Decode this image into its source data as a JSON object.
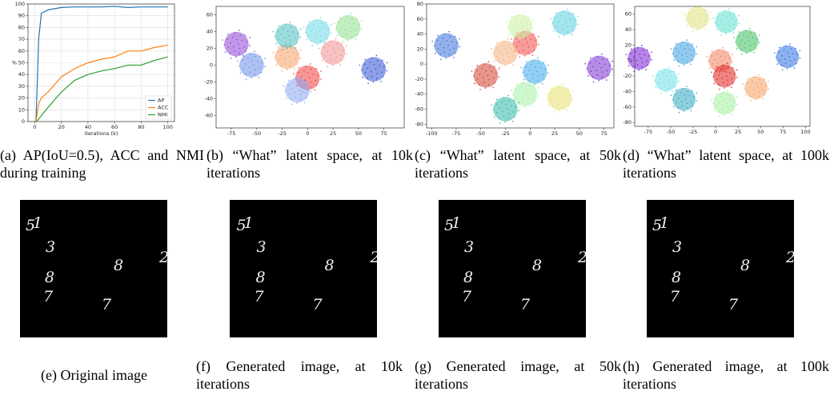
{
  "chart_data": [
    {
      "type": "line",
      "xlabel": "iterations (k)",
      "ylabel": "%",
      "x": [
        1,
        3,
        5,
        10,
        20,
        30,
        40,
        50,
        60,
        70,
        80,
        90,
        100
      ],
      "series": [
        {
          "name": "AP",
          "color": "#1f77b4",
          "values": [
            0,
            70,
            92,
            95,
            97,
            97.5,
            97.5,
            97.5,
            98,
            97,
            97.5,
            97.5,
            97.5
          ]
        },
        {
          "name": "ACC",
          "color": "#ff7f0e",
          "values": [
            0,
            15,
            20,
            25,
            38,
            45,
            50,
            53,
            55,
            60,
            60,
            63,
            65
          ]
        },
        {
          "name": "NMI",
          "color": "#2ca02c",
          "values": [
            0,
            2,
            5,
            12,
            25,
            35,
            40,
            43,
            45,
            48,
            48,
            52,
            55
          ]
        }
      ],
      "xlim": [
        -5,
        105
      ],
      "ylim": [
        0,
        100
      ],
      "xticks": [
        0,
        20,
        40,
        60,
        80,
        100
      ],
      "yticks": [
        0,
        10,
        20,
        30,
        40,
        50,
        60,
        70,
        80,
        90,
        100
      ],
      "grid": true,
      "legend": "lower right"
    },
    {
      "type": "scatter",
      "xlim": [
        -90,
        95
      ],
      "ylim": [
        -75,
        70
      ],
      "xticks": [
        -75,
        -50,
        -25,
        0,
        25,
        50,
        75
      ],
      "yticks": [
        -60,
        -40,
        -20,
        0,
        20,
        40,
        60
      ],
      "x": [
        -70,
        -55,
        -20,
        -20,
        40,
        0,
        -10,
        25,
        10,
        65
      ],
      "values": [
        25,
        0,
        10,
        35,
        45,
        -15,
        -30,
        15,
        40,
        -5
      ],
      "colors": [
        "#8e44d6",
        "#6a8ee8",
        "#f5a06a",
        "#4cc0c0",
        "#8fe08f",
        "#f04040",
        "#8aa6f0",
        "#f09090",
        "#6fd8e6",
        "#3050d0"
      ]
    },
    {
      "type": "scatter",
      "xlim": [
        -105,
        85
      ],
      "ylim": [
        -85,
        80
      ],
      "xticks": [
        -100,
        -75,
        -50,
        -25,
        0,
        25,
        50,
        75
      ],
      "yticks": [
        -80,
        -60,
        -40,
        -20,
        0,
        20,
        40,
        60,
        80
      ],
      "x": [
        -85,
        -5,
        35,
        -25,
        5,
        70,
        -5,
        -25,
        30,
        -45,
        -10
      ],
      "values": [
        25,
        28,
        55,
        15,
        -10,
        -5,
        -40,
        -60,
        -45,
        -15,
        50
      ],
      "colors": [
        "#3a6fd8",
        "#f04848",
        "#5ad0e0",
        "#f5b080",
        "#3aa8e8",
        "#7a30d0",
        "#a8f0a8",
        "#30b8a8",
        "#e8e070",
        "#d04030",
        "#c8f0a0"
      ]
    },
    {
      "type": "scatter",
      "xlim": [
        -90,
        105
      ],
      "ylim": [
        -85,
        70
      ],
      "xticks": [
        -75,
        -50,
        -25,
        0,
        25,
        50,
        75,
        100
      ],
      "yticks": [
        -80,
        -60,
        -40,
        -20,
        0,
        20,
        40,
        60
      ],
      "x": [
        -20,
        12,
        -85,
        -35,
        5,
        10,
        80,
        45,
        -35,
        10,
        -55,
        35
      ],
      "values": [
        55,
        50,
        3,
        10,
        0,
        -20,
        5,
        -35,
        -50,
        -55,
        -25,
        25
      ],
      "colors": [
        "#e0e080",
        "#60e0d0",
        "#7a20d0",
        "#3aa0e0",
        "#f08060",
        "#e02020",
        "#3070e0",
        "#f5a060",
        "#30a8c0",
        "#a0f0a0",
        "#70e0e8",
        "#40c060"
      ]
    }
  ],
  "captions": [
    "(a) AP(IoU=0.5), ACC and NMI during training",
    "(b) “What” latent space, at 10k iterations",
    "(c) “What” latent space, at 50k iterations",
    "(d) “What” latent space, at 100k iterations",
    "(e) Original image",
    "(f) Generated image, at 10k iterations",
    "(g) Generated image, at 50k iterations",
    "(h) Generated image, at 100k iterations"
  ],
  "digits": [
    "5",
    "1",
    "3",
    "8",
    "7",
    "8",
    "2",
    "7"
  ]
}
